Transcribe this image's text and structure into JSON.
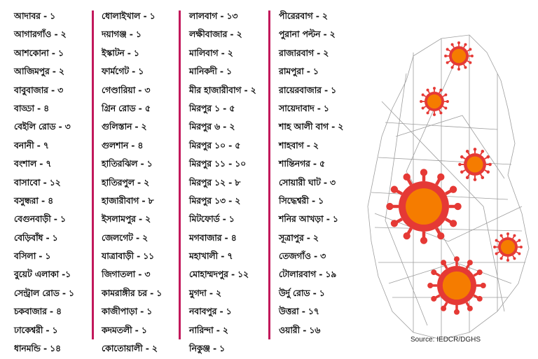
{
  "columns": [
    [
      "আদাবর - ১",
      "আগারগাঁও - ২",
      "আশকোনা - ১",
      "আজিমপুর - ২",
      "বাবুবাজার - ৩",
      "বাড্ডা - ৪",
      "বেইলি রোড - ৩",
      "বনানী - ৭",
      "বংশাল - ৭",
      "বাসাবো - ১২",
      "বসুন্ধরা - ৪",
      "বেগুনবাড়ী - ১",
      "বেড়িবাঁধ - ১",
      "বসিলা - ১",
      "বুয়েট এলাকা -১",
      "সেন্ট্রাল রোড - ১",
      "চকবাজার - ৪",
      "ঢাকেশ্বরী - ১",
      "ধানমন্ডি - ১৪"
    ],
    [
      "ধোলাইখাল - ১",
      "দয়াগঞ্জ - ১",
      "ইস্কাটন - ১",
      "ফার্মগেট - ১",
      "গেণ্ডারিয়া - ৩",
      "গ্রিন রোড - ৫",
      "গুলিস্তান - ২",
      "গুলশান - ৪",
      "হাতিরঝিল - ১",
      "হাতিরপুল - ২",
      "হাজারীবাগ - ৮",
      "ইসলামপুর - ২",
      "জেলগেট - ২",
      "যাত্রাবাড়ী - ১১",
      "জিগাতলা - ৩",
      "কামরাঙ্গীর চর - ১",
      "কাজীপাড়া - ১",
      "কদমতলী - ১",
      "কোতোয়ালী - ২"
    ],
    [
      "লালবাগ - ১৩",
      "লক্ষীবাজার - ২",
      "মালিবাগ - ২",
      "মানিকদী - ১",
      "মীর হাজারীবাগ - ২",
      "মিরপুর ১ - ৫",
      "মিরপুর ৬ - ২",
      "মিরপুর ১০ - ৫",
      "মিরপুর ১১ - ১০",
      "মিরপুর ১২ - ৮",
      "মিরপুর ১৩ - ২",
      "মিটফোর্ড - ১",
      "মগবাজার - ৪",
      "মহাখালী - ৭",
      "মোহাম্মদপুর - ১২",
      "মুগদা - ২",
      "নবাবপুর - ১",
      "নারিন্দা - ২",
      "নিকুঞ্জ - ১"
    ],
    [
      "পীরেরবাগ - ২",
      "পুরানা পল্টন - ২",
      "রাজারবাগ - ২",
      "রামপুরা - ১",
      "রায়েরবাজার - ১",
      "সায়েদাবাদ - ১",
      "শাহ আলী বাগ - ২",
      "শাহবাগ - ২",
      "শান্তিনগর - ৫",
      "সোয়ারী ঘাট - ৩",
      "সিদ্ধেশ্বরী - ১",
      "শনির আখড়া - ১",
      "সূত্রাপুর - ২",
      "তেজগাঁও - ৩",
      "টোলারবাগ - ১৯",
      "উর্দু রোড - ১",
      "উত্তরা - ১৭",
      "ওয়ারী - ১৬"
    ]
  ],
  "source": "Source: IEDCR/DGHS",
  "colors": {
    "divider": "#c2185b",
    "virus_outer": "#e53935",
    "virus_inner": "#f57c00"
  },
  "icons": [
    "virus-icon",
    "map-icon"
  ]
}
